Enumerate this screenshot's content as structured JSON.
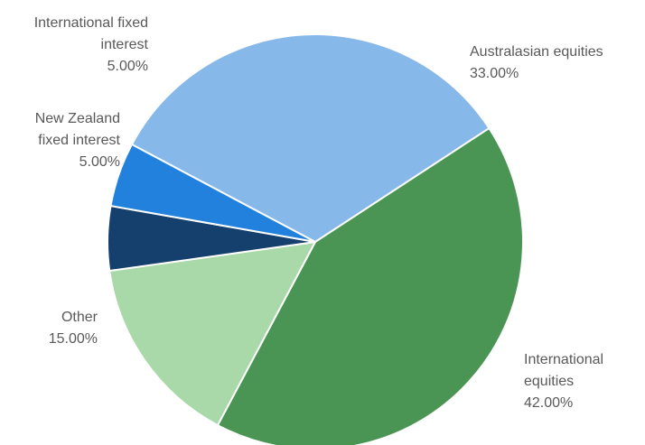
{
  "chart_data": {
    "type": "pie",
    "title": "",
    "slices": [
      {
        "name": "Australasian equities",
        "label_lines": [
          "Australasian equities"
        ],
        "value_label": "33.00%",
        "value": 33.0,
        "color": "#86b8ea"
      },
      {
        "name": "International equities",
        "label_lines": [
          "International",
          "equities"
        ],
        "value_label": "42.00%",
        "value": 42.0,
        "color": "#4a9553"
      },
      {
        "name": "Other",
        "label_lines": [
          "Other"
        ],
        "value_label": "15.00%",
        "value": 15.0,
        "color": "#a9d8a9"
      },
      {
        "name": "New Zealand fixed interest",
        "label_lines": [
          "New Zealand",
          "fixed interest"
        ],
        "value_label": "5.00%",
        "value": 5.0,
        "color": "#153f6c"
      },
      {
        "name": "International fixed interest",
        "label_lines": [
          "International fixed",
          "interest"
        ],
        "value_label": "5.00%",
        "value": 5.0,
        "color": "#2181dd"
      }
    ],
    "legend": "none"
  }
}
